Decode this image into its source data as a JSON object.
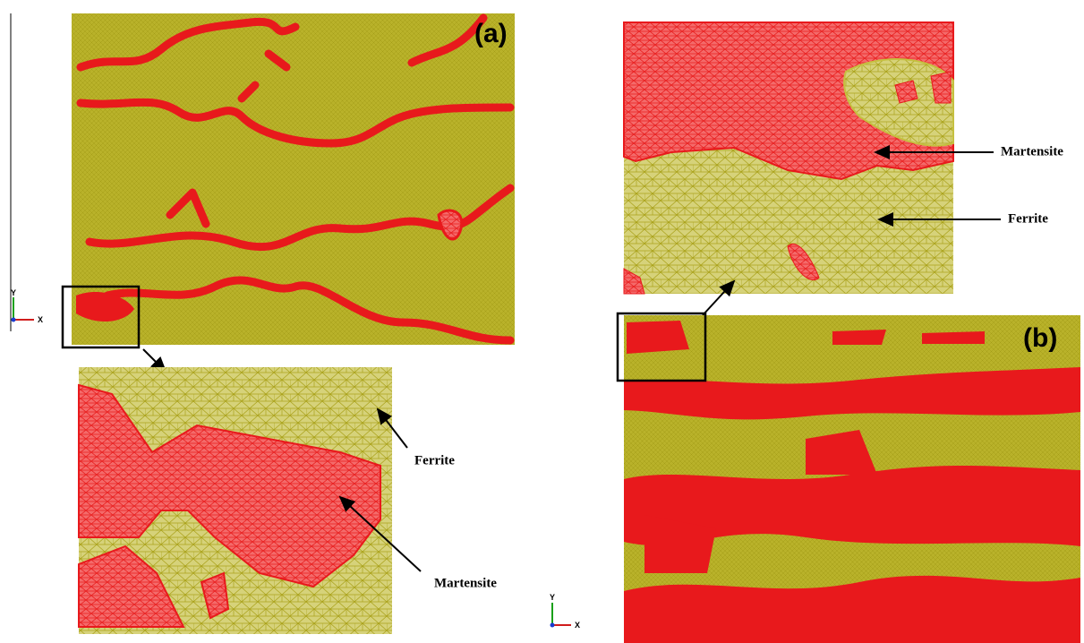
{
  "panel_a": {
    "label": "(a)",
    "inset": {
      "ferrite": "Ferrite",
      "martensite": "Martensite"
    },
    "triad": {
      "y": "Y",
      "x": "X"
    }
  },
  "panel_b": {
    "label": "(b)",
    "inset": {
      "martensite": "Martensite",
      "ferrite": "Ferrite"
    },
    "triad": {
      "y": "Y",
      "x": "X"
    }
  }
}
